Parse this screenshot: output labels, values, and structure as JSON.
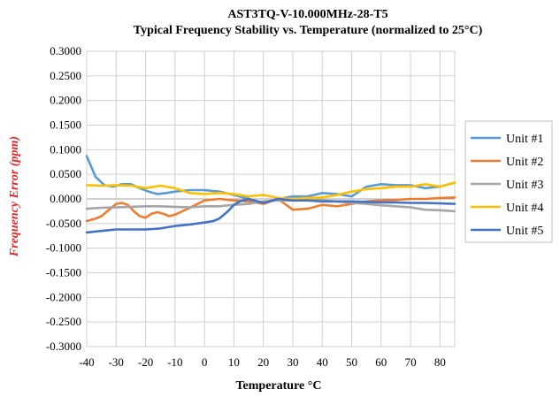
{
  "chart_data": {
    "type": "line",
    "title": "AST3TQ-V-10.000MHz-28-T5",
    "subtitle": "Typical Frequency Stability vs. Temperature (normalized to 25°C)",
    "xlabel": "Temperature °C",
    "ylabel": "Frequency Error (ppm)",
    "xlim": [
      -40,
      85
    ],
    "ylim": [
      -0.3,
      0.3
    ],
    "xticks": [
      -40,
      -30,
      -20,
      -10,
      0,
      10,
      20,
      30,
      40,
      50,
      60,
      70,
      80
    ],
    "xtick_labels": [
      "-40",
      "-30",
      "-20",
      "-10",
      "0",
      "10",
      "20",
      "30",
      "40",
      "50",
      "60",
      "70",
      "80"
    ],
    "yticks": [
      0.3,
      0.25,
      0.2,
      0.15,
      0.1,
      0.05,
      0,
      -0.05,
      -0.1,
      -0.15,
      -0.2,
      -0.25,
      -0.3
    ],
    "ytick_labels": [
      "0.3000",
      "0.2500",
      "0.2000",
      "0.1500",
      "0.1000",
      "0.0500",
      "0.0000",
      "-0.0500",
      "-0.1000",
      "-0.1500",
      "-0.2000",
      "-0.2500",
      "-0.3000"
    ],
    "grid": true,
    "legend_position": "right",
    "series": [
      {
        "name": "Unit #1",
        "color": "#5b9bd5",
        "x": [
          -40,
          -37,
          -34,
          -31,
          -28,
          -25,
          -22,
          -19,
          -16,
          -13,
          -10,
          -5,
          0,
          5,
          10,
          15,
          20,
          25,
          30,
          35,
          40,
          45,
          50,
          55,
          60,
          65,
          70,
          75,
          80,
          85
        ],
        "y": [
          0.087,
          0.045,
          0.028,
          0.025,
          0.03,
          0.03,
          0.022,
          0.015,
          0.01,
          0.012,
          0.015,
          0.018,
          0.018,
          0.015,
          0.008,
          0.0,
          -0.008,
          0.0,
          0.005,
          0.005,
          0.012,
          0.01,
          0.005,
          0.025,
          0.03,
          0.028,
          0.028,
          0.022,
          0.025,
          0.033
        ]
      },
      {
        "name": "Unit #2",
        "color": "#ed7d31",
        "x": [
          -40,
          -37,
          -35,
          -33,
          -30,
          -28,
          -26,
          -24,
          -22,
          -20,
          -18,
          -16,
          -14,
          -12,
          -10,
          -5,
          0,
          5,
          10,
          15,
          20,
          25,
          30,
          35,
          40,
          45,
          50,
          55,
          60,
          65,
          70,
          75,
          80,
          85
        ],
        "y": [
          -0.045,
          -0.04,
          -0.035,
          -0.025,
          -0.01,
          -0.008,
          -0.012,
          -0.025,
          -0.035,
          -0.038,
          -0.03,
          -0.027,
          -0.03,
          -0.035,
          -0.032,
          -0.018,
          -0.003,
          0.0,
          -0.003,
          -0.005,
          -0.01,
          0.0,
          -0.022,
          -0.02,
          -0.012,
          -0.015,
          -0.01,
          -0.005,
          -0.003,
          -0.002,
          0.0,
          0.0,
          0.002,
          0.003
        ]
      },
      {
        "name": "Unit #3",
        "color": "#a5a5a5",
        "x": [
          -40,
          -35,
          -30,
          -25,
          -20,
          -15,
          -10,
          -5,
          0,
          5,
          10,
          15,
          20,
          25,
          30,
          35,
          40,
          45,
          50,
          55,
          60,
          65,
          70,
          75,
          80,
          85
        ],
        "y": [
          -0.02,
          -0.018,
          -0.017,
          -0.016,
          -0.015,
          -0.015,
          -0.016,
          -0.017,
          -0.015,
          -0.015,
          -0.012,
          -0.01,
          -0.005,
          -0.003,
          -0.003,
          -0.003,
          -0.003,
          -0.005,
          -0.008,
          -0.01,
          -0.013,
          -0.015,
          -0.017,
          -0.022,
          -0.023,
          -0.025
        ]
      },
      {
        "name": "Unit #4",
        "color": "#ffc000",
        "x": [
          -40,
          -35,
          -30,
          -25,
          -20,
          -15,
          -10,
          -5,
          0,
          5,
          10,
          15,
          20,
          25,
          30,
          35,
          40,
          45,
          50,
          55,
          60,
          65,
          70,
          75,
          80,
          85
        ],
        "y": [
          0.028,
          0.027,
          0.028,
          0.027,
          0.022,
          0.027,
          0.022,
          0.012,
          0.01,
          0.012,
          0.01,
          0.005,
          0.008,
          0.002,
          0.0,
          0.002,
          0.003,
          0.008,
          0.015,
          0.02,
          0.022,
          0.025,
          0.025,
          0.03,
          0.025,
          0.033
        ]
      },
      {
        "name": "Unit #5",
        "color": "#4472c4",
        "x": [
          -40,
          -35,
          -30,
          -25,
          -20,
          -15,
          -10,
          -5,
          0,
          3,
          5,
          8,
          10,
          12,
          15,
          18,
          20,
          25,
          30,
          35,
          40,
          45,
          50,
          55,
          60,
          65,
          70,
          75,
          80,
          85
        ],
        "y": [
          -0.068,
          -0.065,
          -0.062,
          -0.062,
          -0.062,
          -0.06,
          -0.055,
          -0.052,
          -0.048,
          -0.045,
          -0.04,
          -0.025,
          -0.012,
          -0.005,
          0.0,
          -0.005,
          -0.008,
          0.0,
          -0.003,
          -0.003,
          -0.005,
          -0.005,
          -0.005,
          -0.006,
          -0.007,
          -0.007,
          -0.008,
          -0.008,
          -0.009,
          -0.01
        ]
      }
    ]
  }
}
